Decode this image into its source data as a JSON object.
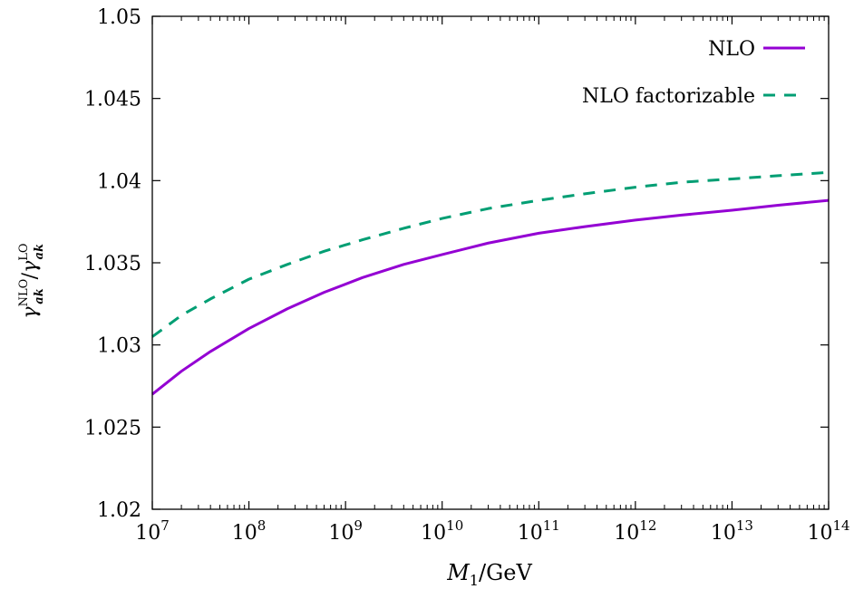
{
  "chart_data": {
    "type": "line",
    "xscale": "log",
    "xlim": [
      10000000,
      100000000000000
    ],
    "ylim": [
      1.02,
      1.05
    ],
    "x_ticks": [
      {
        "value": 10000000,
        "base": "10",
        "exp": "7"
      },
      {
        "value": 100000000,
        "base": "10",
        "exp": "8"
      },
      {
        "value": 1000000000,
        "base": "10",
        "exp": "9"
      },
      {
        "value": 10000000000,
        "base": "10",
        "exp": "10"
      },
      {
        "value": 100000000000,
        "base": "10",
        "exp": "11"
      },
      {
        "value": 1000000000000,
        "base": "10",
        "exp": "12"
      },
      {
        "value": 10000000000000,
        "base": "10",
        "exp": "13"
      },
      {
        "value": 100000000000000,
        "base": "10",
        "exp": "14"
      }
    ],
    "y_ticks": [
      {
        "value": 1.02,
        "label": "1.02"
      },
      {
        "value": 1.025,
        "label": "1.025"
      },
      {
        "value": 1.03,
        "label": "1.03"
      },
      {
        "value": 1.035,
        "label": "1.035"
      },
      {
        "value": 1.04,
        "label": "1.04"
      },
      {
        "value": 1.045,
        "label": "1.045"
      },
      {
        "value": 1.05,
        "label": "1.05"
      }
    ],
    "xlabel": {
      "var": "M",
      "sub": "1",
      "rest": "/GeV"
    },
    "ylabel": {
      "num_base": "γ",
      "num_sup": "NLO",
      "num_sub": "ak",
      "slash": "/",
      "den_base": "γ",
      "den_sup": "LO",
      "den_sub": "ak"
    },
    "legend": {
      "position": "top-right"
    },
    "series": [
      {
        "name": "NLO",
        "color": "#9400d3",
        "style": "solid",
        "x": [
          10000000,
          20000000,
          40000000,
          100000000,
          250000000,
          600000000,
          1500000000,
          4000000000,
          10000000000,
          30000000000,
          100000000000,
          300000000000,
          1000000000000,
          3000000000000,
          10000000000000,
          30000000000000,
          100000000000000
        ],
        "y": [
          1.027,
          1.0284,
          1.0296,
          1.031,
          1.0322,
          1.0332,
          1.0341,
          1.0349,
          1.0355,
          1.0362,
          1.0368,
          1.0372,
          1.0376,
          1.0379,
          1.0382,
          1.0385,
          1.0388
        ]
      },
      {
        "name": "NLO factorizable",
        "color": "#009e73",
        "style": "dashed",
        "x": [
          10000000,
          20000000,
          40000000,
          100000000,
          250000000,
          600000000,
          1500000000,
          4000000000,
          10000000000,
          30000000000,
          100000000000,
          300000000000,
          1000000000000,
          3000000000000,
          10000000000000,
          30000000000000,
          100000000000000
        ],
        "y": [
          1.0305,
          1.0318,
          1.0328,
          1.034,
          1.0349,
          1.0357,
          1.0364,
          1.0371,
          1.0377,
          1.0383,
          1.0388,
          1.0392,
          1.0396,
          1.0399,
          1.0401,
          1.0403,
          1.0405
        ]
      }
    ]
  }
}
